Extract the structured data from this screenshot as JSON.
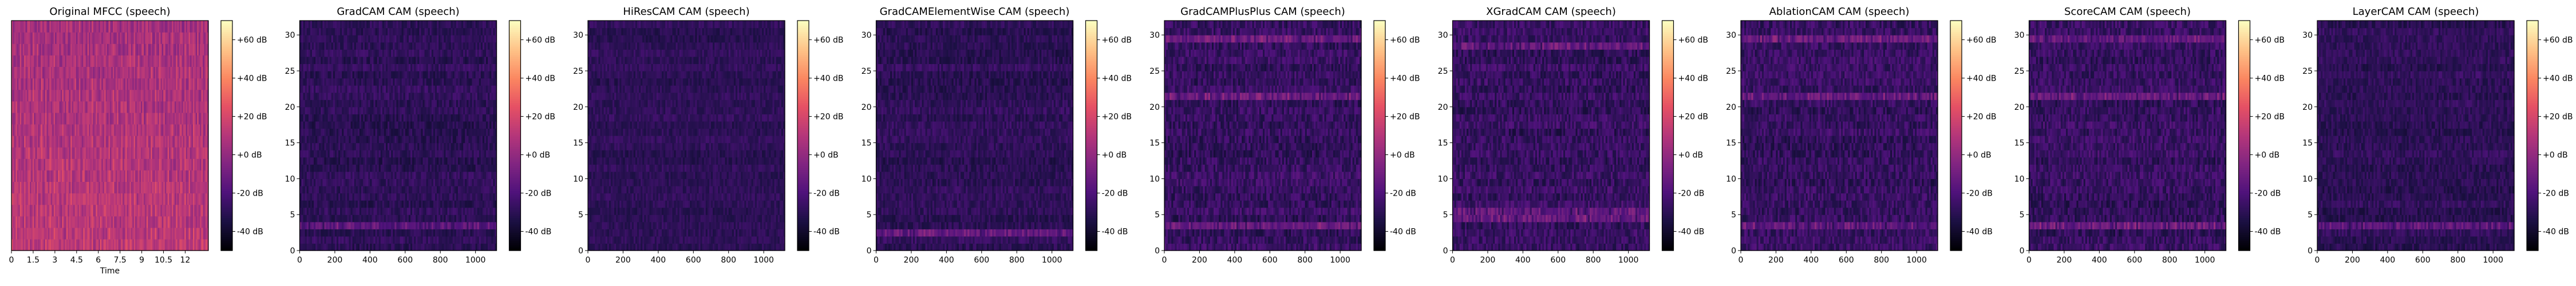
{
  "figure": {
    "background": "#ffffff"
  },
  "colormap": {
    "name": "magma",
    "stops": [
      "#000004",
      "#1c1044",
      "#4f127b",
      "#812581",
      "#b5367a",
      "#e55064",
      "#fb8761",
      "#fec287",
      "#fcfdbf"
    ]
  },
  "chart_data": [
    {
      "type": "heatmap",
      "title": "Original MFCC (speech)",
      "xlabel": "Time",
      "ylabel": "",
      "x_ticks": [
        "0",
        "1.5",
        "3",
        "4.5",
        "6",
        "7.5",
        "9",
        "10.5",
        "12"
      ],
      "x_tick_values": [
        0,
        1.5,
        3,
        4.5,
        6,
        7.5,
        9,
        10.5,
        12
      ],
      "xlim": [
        0,
        13.6
      ],
      "y_ticks": [],
      "ylim": [
        0,
        1
      ],
      "colorbar": {
        "ticks": [
          "+60 dB",
          "+40 dB",
          "+20 dB",
          "+0 dB",
          "-20 dB",
          "-40 dB"
        ],
        "tick_values": [
          60,
          40,
          20,
          0,
          -20,
          -40
        ],
        "range": [
          -50,
          70
        ]
      },
      "pattern": {
        "base": 0.5,
        "noise": 0.07,
        "kind": "mfcc",
        "hot_rows": []
      }
    },
    {
      "type": "heatmap",
      "title": "GradCAM CAM (speech)",
      "xlabel": "",
      "ylabel": "",
      "x_ticks": [
        "0",
        "200",
        "400",
        "600",
        "800",
        "1000"
      ],
      "x_tick_values": [
        0,
        200,
        400,
        600,
        800,
        1000
      ],
      "xlim": [
        0,
        1120
      ],
      "y_ticks": [
        "0",
        "5",
        "10",
        "15",
        "20",
        "25",
        "30"
      ],
      "y_tick_values": [
        0,
        5,
        10,
        15,
        20,
        25,
        30
      ],
      "ylim": [
        0,
        32
      ],
      "colorbar": {
        "ticks": [
          "+60 dB",
          "+40 dB",
          "+20 dB",
          "+0 dB",
          "-20 dB",
          "-40 dB"
        ],
        "tick_values": [
          60,
          40,
          20,
          0,
          -20,
          -40
        ],
        "range": [
          -50,
          70
        ]
      },
      "pattern": {
        "base": 0.17,
        "noise": 0.05,
        "kind": "cam",
        "hot_rows": [
          3
        ]
      }
    },
    {
      "type": "heatmap",
      "title": "HiResCAM CAM (speech)",
      "xlabel": "",
      "ylabel": "",
      "x_ticks": [
        "0",
        "200",
        "400",
        "600",
        "800",
        "1000"
      ],
      "x_tick_values": [
        0,
        200,
        400,
        600,
        800,
        1000
      ],
      "xlim": [
        0,
        1120
      ],
      "y_ticks": [
        "0",
        "5",
        "10",
        "15",
        "20",
        "25",
        "30"
      ],
      "y_tick_values": [
        0,
        5,
        10,
        15,
        20,
        25,
        30
      ],
      "ylim": [
        0,
        32
      ],
      "colorbar": {
        "ticks": [
          "+60 dB",
          "+40 dB",
          "+20 dB",
          "+0 dB",
          "-20 dB",
          "-40 dB"
        ],
        "tick_values": [
          60,
          40,
          20,
          0,
          -20,
          -40
        ],
        "range": [
          -50,
          70
        ]
      },
      "pattern": {
        "base": 0.17,
        "noise": 0.04,
        "kind": "cam",
        "hot_rows": []
      }
    },
    {
      "type": "heatmap",
      "title": "GradCAMElementWise CAM (speech)",
      "xlabel": "",
      "ylabel": "",
      "x_ticks": [
        "0",
        "200",
        "400",
        "600",
        "800",
        "1000"
      ],
      "x_tick_values": [
        0,
        200,
        400,
        600,
        800,
        1000
      ],
      "xlim": [
        0,
        1120
      ],
      "y_ticks": [
        "0",
        "5",
        "10",
        "15",
        "20",
        "25",
        "30"
      ],
      "y_tick_values": [
        0,
        5,
        10,
        15,
        20,
        25,
        30
      ],
      "ylim": [
        0,
        32
      ],
      "colorbar": {
        "ticks": [
          "+60 dB",
          "+40 dB",
          "+20 dB",
          "+0 dB",
          "-20 dB",
          "-40 dB"
        ],
        "tick_values": [
          60,
          40,
          20,
          0,
          -20,
          -40
        ],
        "range": [
          -50,
          70
        ]
      },
      "pattern": {
        "base": 0.17,
        "noise": 0.05,
        "kind": "cam",
        "hot_rows": [
          2
        ]
      }
    },
    {
      "type": "heatmap",
      "title": "GradCAMPlusPlus CAM (speech)",
      "xlabel": "",
      "ylabel": "",
      "x_ticks": [
        "0",
        "200",
        "400",
        "600",
        "800",
        "1000"
      ],
      "x_tick_values": [
        0,
        200,
        400,
        600,
        800,
        1000
      ],
      "xlim": [
        0,
        1120
      ],
      "y_ticks": [
        "0",
        "5",
        "10",
        "15",
        "20",
        "25",
        "30"
      ],
      "y_tick_values": [
        0,
        5,
        10,
        15,
        20,
        25,
        30
      ],
      "ylim": [
        0,
        32
      ],
      "colorbar": {
        "ticks": [
          "+60 dB",
          "+40 dB",
          "+20 dB",
          "+0 dB",
          "-20 dB",
          "-40 dB"
        ],
        "tick_values": [
          60,
          40,
          20,
          0,
          -20,
          -40
        ],
        "range": [
          -50,
          70
        ]
      },
      "pattern": {
        "base": 0.19,
        "noise": 0.07,
        "kind": "cam",
        "hot_rows": [
          3,
          21,
          29
        ]
      }
    },
    {
      "type": "heatmap",
      "title": "XGradCAM CAM (speech)",
      "xlabel": "",
      "ylabel": "",
      "x_ticks": [
        "0",
        "200",
        "400",
        "600",
        "800",
        "1000"
      ],
      "x_tick_values": [
        0,
        200,
        400,
        600,
        800,
        1000
      ],
      "xlim": [
        0,
        1120
      ],
      "y_ticks": [
        "0",
        "5",
        "10",
        "15",
        "20",
        "25",
        "30"
      ],
      "y_tick_values": [
        0,
        5,
        10,
        15,
        20,
        25,
        30
      ],
      "ylim": [
        0,
        32
      ],
      "colorbar": {
        "ticks": [
          "+60 dB",
          "+40 dB",
          "+20 dB",
          "+0 dB",
          "-20 dB",
          "-40 dB"
        ],
        "tick_values": [
          60,
          40,
          20,
          0,
          -20,
          -40
        ],
        "range": [
          -50,
          70
        ]
      },
      "pattern": {
        "base": 0.19,
        "noise": 0.07,
        "kind": "cam",
        "hot_rows": [
          4,
          5,
          28
        ]
      }
    },
    {
      "type": "heatmap",
      "title": "AblationCAM CAM (speech)",
      "xlabel": "",
      "ylabel": "",
      "x_ticks": [
        "0",
        "200",
        "400",
        "600",
        "800",
        "1000"
      ],
      "x_tick_values": [
        0,
        200,
        400,
        600,
        800,
        1000
      ],
      "xlim": [
        0,
        1120
      ],
      "y_ticks": [
        "0",
        "5",
        "10",
        "15",
        "20",
        "25",
        "30"
      ],
      "y_tick_values": [
        0,
        5,
        10,
        15,
        20,
        25,
        30
      ],
      "ylim": [
        0,
        32
      ],
      "colorbar": {
        "ticks": [
          "+60 dB",
          "+40 dB",
          "+20 dB",
          "+0 dB",
          "-20 dB",
          "-40 dB"
        ],
        "tick_values": [
          60,
          40,
          20,
          0,
          -20,
          -40
        ],
        "range": [
          -50,
          70
        ]
      },
      "pattern": {
        "base": 0.19,
        "noise": 0.07,
        "kind": "cam",
        "hot_rows": [
          3,
          21,
          29
        ]
      }
    },
    {
      "type": "heatmap",
      "title": "ScoreCAM CAM (speech)",
      "xlabel": "",
      "ylabel": "",
      "x_ticks": [
        "0",
        "200",
        "400",
        "600",
        "800",
        "1000"
      ],
      "x_tick_values": [
        0,
        200,
        400,
        600,
        800,
        1000
      ],
      "xlim": [
        0,
        1120
      ],
      "y_ticks": [
        "0",
        "5",
        "10",
        "15",
        "20",
        "25",
        "30"
      ],
      "y_tick_values": [
        0,
        5,
        10,
        15,
        20,
        25,
        30
      ],
      "ylim": [
        0,
        32
      ],
      "colorbar": {
        "ticks": [
          "+60 dB",
          "+40 dB",
          "+20 dB",
          "+0 dB",
          "-20 dB",
          "-40 dB"
        ],
        "tick_values": [
          60,
          40,
          20,
          0,
          -20,
          -40
        ],
        "range": [
          -50,
          70
        ]
      },
      "pattern": {
        "base": 0.19,
        "noise": 0.07,
        "kind": "cam",
        "hot_rows": [
          3,
          21,
          29
        ]
      }
    },
    {
      "type": "heatmap",
      "title": "LayerCAM CAM (speech)",
      "xlabel": "",
      "ylabel": "",
      "x_ticks": [
        "0",
        "200",
        "400",
        "600",
        "800",
        "1000"
      ],
      "x_tick_values": [
        0,
        200,
        400,
        600,
        800,
        1000
      ],
      "xlim": [
        0,
        1120
      ],
      "y_ticks": [
        "0",
        "5",
        "10",
        "15",
        "20",
        "25",
        "30"
      ],
      "y_tick_values": [
        0,
        5,
        10,
        15,
        20,
        25,
        30
      ],
      "ylim": [
        0,
        32
      ],
      "colorbar": {
        "ticks": [
          "+60 dB",
          "+40 dB",
          "+20 dB",
          "+0 dB",
          "-20 dB",
          "-40 dB"
        ],
        "tick_values": [
          60,
          40,
          20,
          0,
          -20,
          -40
        ],
        "range": [
          -50,
          70
        ]
      },
      "pattern": {
        "base": 0.17,
        "noise": 0.05,
        "kind": "cam",
        "hot_rows": [
          3
        ]
      }
    }
  ]
}
